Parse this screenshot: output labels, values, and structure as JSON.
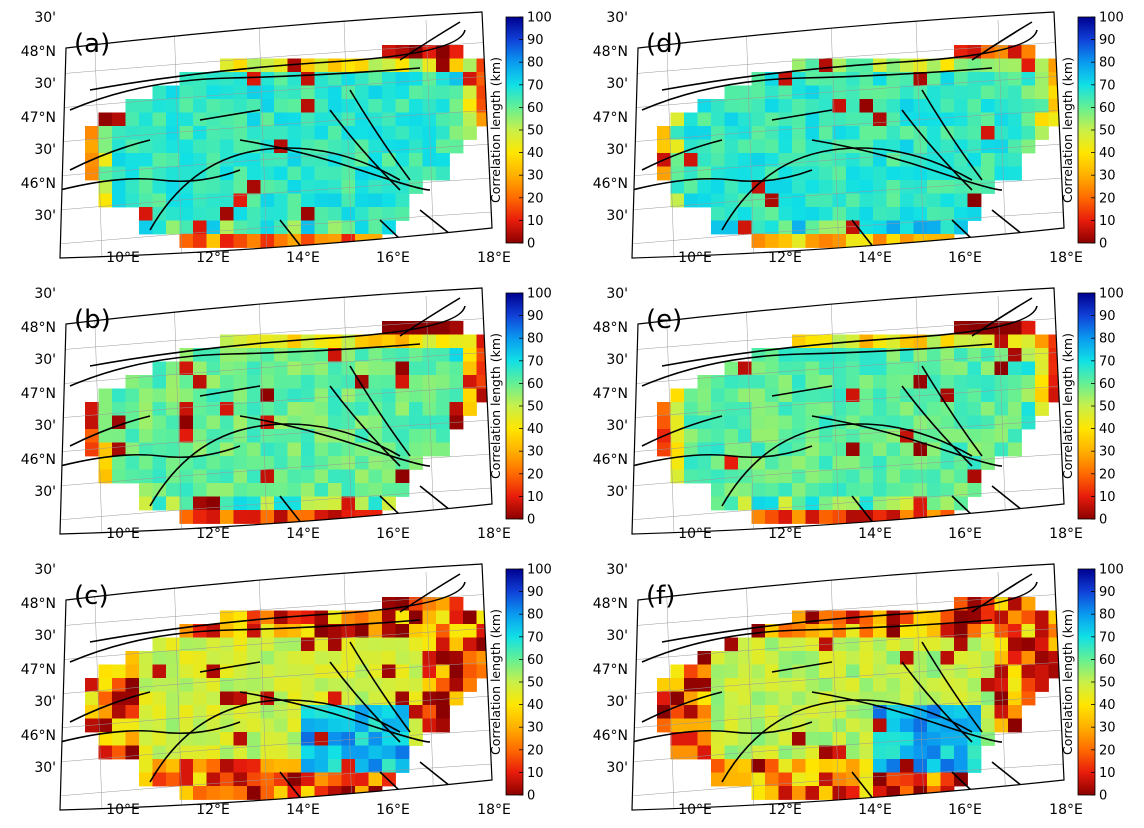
{
  "colorbar": {
    "label": "Correlation length (km)",
    "ticks": [
      "100",
      "90",
      "80",
      "70",
      "60",
      "50",
      "40",
      "30",
      "20",
      "10",
      "0"
    ],
    "colors": [
      "#8b0000",
      "#e81c0c",
      "#ff6a00",
      "#ffb000",
      "#ffe600",
      "#c8f04a",
      "#64f094",
      "#10e0e6",
      "#0a9af0",
      "#1040d8",
      "#00008f"
    ]
  },
  "axes": {
    "lat_labels": [
      "30'",
      "48°N",
      "30'",
      "47°N",
      "30'",
      "46°N",
      "30'"
    ],
    "lon_labels": [
      "10°E",
      "12°E",
      "14°E",
      "16°E",
      "18°E"
    ]
  },
  "panels": [
    {
      "label": "(a)",
      "level": 0.28,
      "edge": 0.9
    },
    {
      "label": "(b)",
      "level": 0.34,
      "edge": 0.95
    },
    {
      "label": "(c)",
      "level": 0.45,
      "edge": 1.0
    },
    {
      "label": "(d)",
      "level": 0.28,
      "edge": 0.75
    },
    {
      "label": "(e)",
      "level": 0.33,
      "edge": 0.95
    },
    {
      "label": "(f)",
      "level": 0.43,
      "edge": 1.0
    }
  ]
}
